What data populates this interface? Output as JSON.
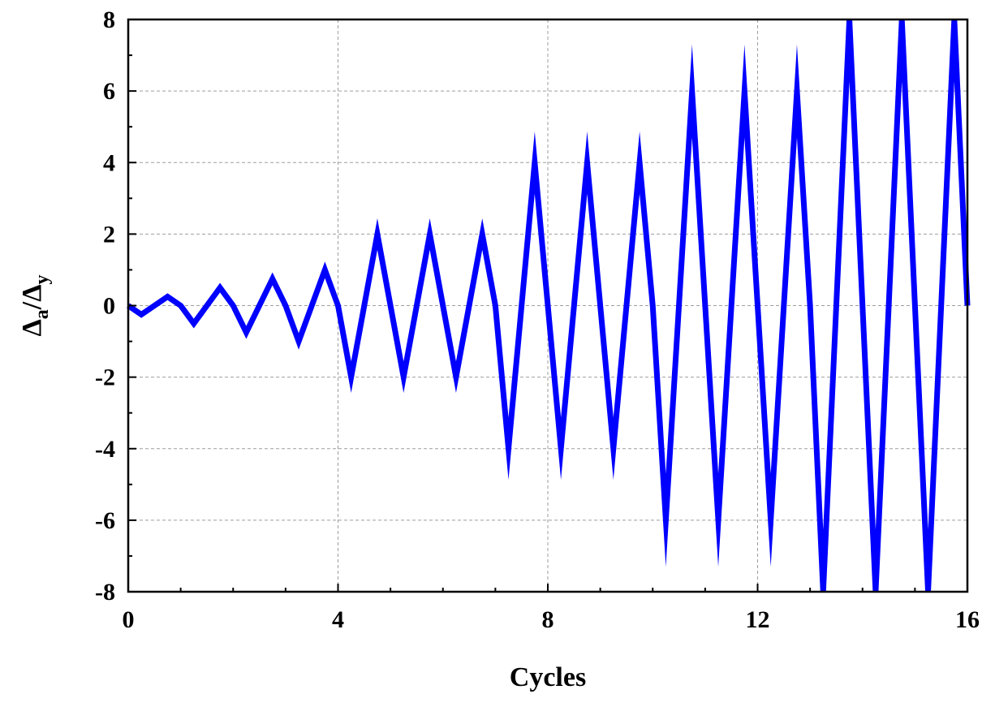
{
  "chart_data": {
    "type": "line",
    "title": "",
    "xlabel": "Cycles",
    "ylabel_main": "Δ",
    "ylabel_sub_a": "a",
    "ylabel_slash": "/",
    "ylabel_sub_y": "y",
    "xlim": [
      0,
      16
    ],
    "ylim": [
      -8,
      8
    ],
    "x_ticks": [
      0,
      4,
      8,
      12,
      16
    ],
    "x_tick_labels": [
      "0",
      "4",
      "8",
      "12",
      "16"
    ],
    "y_ticks": [
      -8,
      -6,
      -4,
      -2,
      0,
      2,
      4,
      6,
      8
    ],
    "y_tick_labels": [
      "-8",
      "-6",
      "-4",
      "-2",
      "0",
      "2",
      "4",
      "6",
      "8"
    ],
    "grid": true,
    "legend": "none",
    "series": [
      {
        "color": "#0000ff",
        "x": [
          0,
          0.25,
          0.75,
          1,
          1.25,
          1.75,
          2,
          2.25,
          2.75,
          3,
          3.25,
          3.75,
          4,
          4.25,
          4.75,
          5.25,
          5.75,
          6.25,
          6.75,
          7,
          7.25,
          7.75,
          8.25,
          8.75,
          9.25,
          9.75,
          10,
          10.25,
          10.75,
          11.25,
          11.75,
          12.25,
          12.75,
          13,
          13.25,
          13.75,
          14.25,
          14.75,
          15.25,
          15.75,
          16
        ],
        "y": [
          0,
          -0.25,
          0.25,
          0,
          -0.5,
          0.5,
          0,
          -0.75,
          0.75,
          0,
          -1,
          1,
          0,
          -2,
          2,
          -2,
          2,
          -2,
          2,
          0,
          -4,
          4,
          -4,
          4,
          -4,
          4,
          0,
          -6,
          6,
          -6,
          6,
          -6,
          6,
          0,
          -8,
          8,
          -8,
          8,
          -8,
          8,
          0
        ]
      }
    ]
  }
}
